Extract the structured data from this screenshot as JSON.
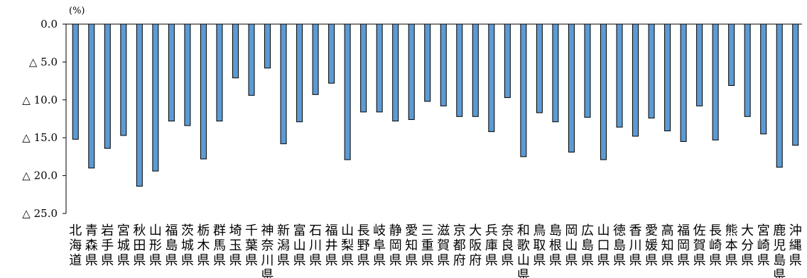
{
  "chart_data": {
    "type": "bar",
    "orientation": "vertical-downward",
    "unit_label": "(%)",
    "ylim": [
      0,
      25
    ],
    "y_ticks": [
      0,
      5,
      10,
      15,
      20,
      25
    ],
    "y_tick_labels": [
      "0.0",
      "△ 5.0",
      "△ 10.0",
      "△ 15.0",
      "△ 20.0",
      "△ 25.0"
    ],
    "grid": false,
    "legend": "none",
    "bar_color": "#5b9bd5",
    "categories": [
      "北海道",
      "青森県",
      "岩手県",
      "宮城県",
      "秋田県",
      "山形県",
      "福島県",
      "茨城県",
      "栃木県",
      "群馬県",
      "埼玉県",
      "千葉県",
      "神奈川県",
      "新潟県",
      "富山県",
      "石川県",
      "福井県",
      "山梨県",
      "長野県",
      "岐阜県",
      "静岡県",
      "愛知県",
      "三重県",
      "滋賀県",
      "京都府",
      "大阪府",
      "兵庫県",
      "奈良県",
      "和歌山県",
      "鳥取県",
      "島根県",
      "岡山県",
      "広島県",
      "山口県",
      "徳島県",
      "香川県",
      "愛媛県",
      "高知県",
      "福岡県",
      "佐賀県",
      "長崎県",
      "熊本県",
      "大分県",
      "宮崎県",
      "鹿児島県",
      "沖縄県"
    ],
    "values": [
      -15.2,
      -19.0,
      -16.4,
      -14.7,
      -21.4,
      -19.4,
      -12.8,
      -13.4,
      -17.8,
      -12.8,
      -7.1,
      -9.4,
      -5.8,
      -15.8,
      -12.9,
      -9.3,
      -7.8,
      -17.9,
      -11.6,
      -11.6,
      -12.8,
      -12.6,
      -10.2,
      -10.8,
      -12.2,
      -12.2,
      -14.2,
      -9.7,
      -17.5,
      -11.7,
      -12.9,
      -16.9,
      -12.3,
      -17.9,
      -13.6,
      -14.8,
      -12.4,
      -14.1,
      -15.5,
      -10.8,
      -15.3,
      -8.1,
      -12.2,
      -14.5,
      -18.9,
      -16.0
    ]
  }
}
